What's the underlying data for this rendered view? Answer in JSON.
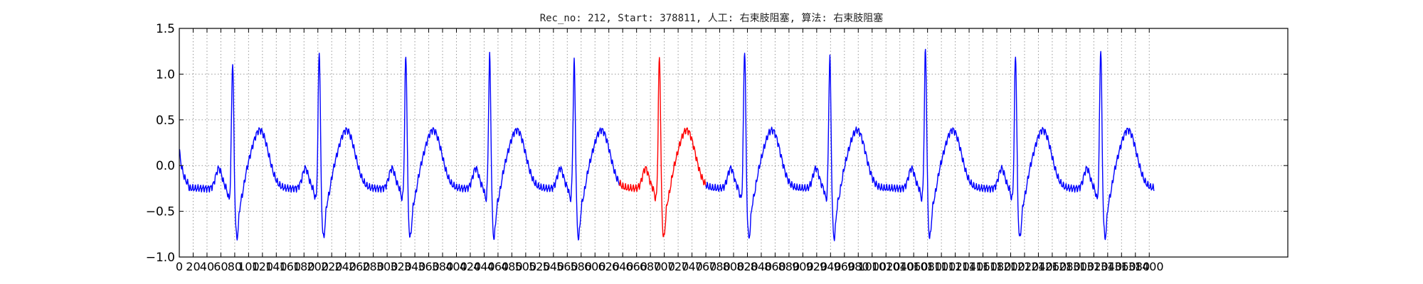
{
  "chart_data": {
    "type": "line",
    "title": "Rec_no: 212, Start: 378811, 人工: 右束肢阻塞, 算法: 右束肢阻塞",
    "xlabel": "",
    "ylabel": "",
    "xlim": [
      0,
      1600
    ],
    "ylim": [
      -1.0,
      1.5
    ],
    "yticks": [
      -1.0,
      -0.5,
      0.0,
      0.5,
      1.0,
      1.5
    ],
    "ytick_labels": [
      "−1.0",
      "−0.5",
      "0.0",
      "0.5",
      "1.0",
      "1.5"
    ],
    "xticks": [
      0,
      20,
      40,
      60,
      80,
      100,
      120,
      140,
      160,
      180,
      200,
      220,
      240,
      260,
      280,
      300,
      320,
      340,
      360,
      380,
      400,
      420,
      440,
      460,
      480,
      500,
      520,
      540,
      560,
      580,
      600,
      620,
      640,
      660,
      680,
      700,
      720,
      740,
      760,
      780,
      800,
      820,
      840,
      860,
      880,
      900,
      920,
      940,
      960,
      980,
      1000,
      1020,
      1040,
      1060,
      1080,
      1100,
      1120,
      1140,
      1160,
      1180,
      1200,
      1220,
      1240,
      1260,
      1280,
      1300,
      1320,
      1340,
      1360,
      1380,
      1400
    ],
    "xtick_labels": [
      "0",
      "20",
      "40",
      "60",
      "80",
      "100",
      "120",
      "140",
      "160",
      "180",
      "200",
      "220",
      "240",
      "260",
      "280",
      "300",
      "320",
      "340",
      "360",
      "380",
      "400",
      "420",
      "440",
      "460",
      "480",
      "500",
      "520",
      "540",
      "560",
      "580",
      "600",
      "620",
      "640",
      "660",
      "680",
      "700",
      "720",
      "740",
      "760",
      "780",
      "800",
      "820",
      "840",
      "860",
      "880",
      "900",
      "920",
      "940",
      "960",
      "980",
      "1000",
      "1020",
      "1040",
      "1060",
      "1080",
      "1100",
      "1120",
      "1140",
      "1160",
      "1180",
      "1200",
      "1220",
      "1240",
      "1260",
      "1280",
      "1300",
      "1320",
      "1340",
      "1360",
      "1380",
      "1400"
    ],
    "grid": true,
    "grid_style": "dotted",
    "colors": {
      "normal": "#0000ff",
      "highlight": "#ff0000",
      "grid": "#999999"
    },
    "baseline": -0.25,
    "r_peaks": [
      {
        "x": 77,
        "amp": 1.15,
        "highlight": false
      },
      {
        "x": 202,
        "amp": 1.27,
        "highlight": false
      },
      {
        "x": 327,
        "amp": 1.22,
        "highlight": false
      },
      {
        "x": 448,
        "amp": 1.22,
        "highlight": false
      },
      {
        "x": 570,
        "amp": 1.16,
        "highlight": false
      },
      {
        "x": 693,
        "amp": 1.21,
        "highlight": true
      },
      {
        "x": 816,
        "amp": 1.29,
        "highlight": false
      },
      {
        "x": 939,
        "amp": 1.21,
        "highlight": false
      },
      {
        "x": 1077,
        "amp": 1.29,
        "highlight": false
      },
      {
        "x": 1207,
        "amp": 1.23,
        "highlight": false
      },
      {
        "x": 1330,
        "amp": 1.3,
        "highlight": false
      }
    ],
    "highlight_range": [
      635,
      760
    ],
    "signal_end_x": 1407
  }
}
